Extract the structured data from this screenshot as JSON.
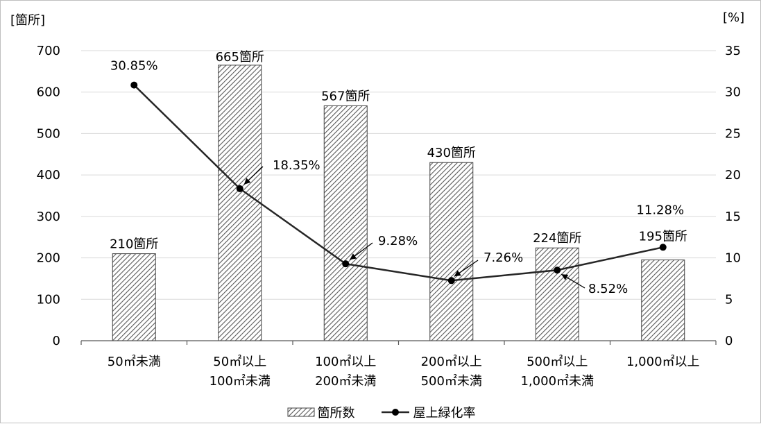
{
  "chart_data": {
    "type": "bar+line",
    "left_axis": {
      "unit": "[箇所]",
      "ylim": [
        0,
        700
      ],
      "ticks": [
        "0",
        "100",
        "200",
        "300",
        "400",
        "500",
        "600",
        "700"
      ]
    },
    "right_axis": {
      "unit": "[%]",
      "ylim": [
        0,
        35
      ],
      "ticks": [
        "0",
        "5",
        "10",
        "15",
        "20",
        "25",
        "30",
        "35"
      ]
    },
    "categories": [
      [
        "50㎡未満"
      ],
      [
        "50㎡以上",
        "100㎡未満"
      ],
      [
        "100㎡以上",
        "200㎡未満"
      ],
      [
        "200㎡以上",
        "500㎡未満"
      ],
      [
        "500㎡以上",
        "1,000㎡未満"
      ],
      [
        "1,000㎡以上"
      ]
    ],
    "series": [
      {
        "name": "箇所数",
        "kind": "bar",
        "axis": "left",
        "values": [
          210,
          665,
          567,
          430,
          224,
          195
        ],
        "labels": [
          "210箇所",
          "665箇所",
          "567箇所",
          "430箇所",
          "224箇所",
          "195箇所"
        ]
      },
      {
        "name": "屋上緑化率",
        "kind": "line",
        "axis": "right",
        "values": [
          30.85,
          18.35,
          9.28,
          7.26,
          8.52,
          11.28
        ],
        "labels": [
          "30.85%",
          "18.35%",
          "9.28%",
          "7.26%",
          "8.52%",
          "11.28%"
        ]
      }
    ],
    "grid": true,
    "legend": "bottom"
  }
}
